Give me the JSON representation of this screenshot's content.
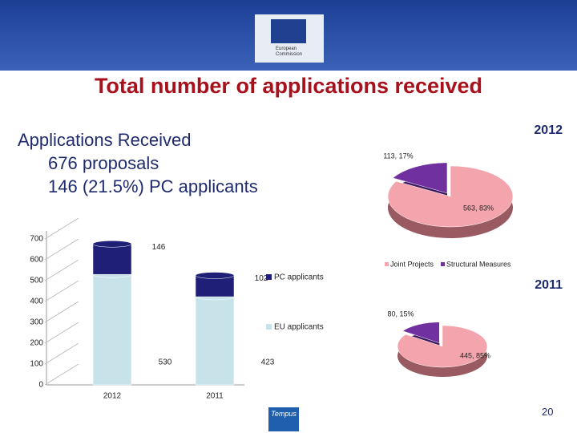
{
  "header": {
    "logo_text": "European Commission"
  },
  "slide": {
    "title": "Total number of applications received",
    "summary": [
      "Applications Received",
      "676 proposals",
      "146 (21.5%) PC applicants"
    ],
    "footer_logo": "Tempus",
    "page_number": "20"
  },
  "chart_data": [
    {
      "type": "bar",
      "stacked": true,
      "categories": [
        "2012",
        "2011"
      ],
      "series": [
        {
          "name": "EU applicants",
          "color": "#c8e2ea",
          "values": [
            530,
            423
          ]
        },
        {
          "name": "PC applicants",
          "color": "#1f1f78",
          "values": [
            146,
            102
          ]
        }
      ],
      "ylim": [
        0,
        700
      ],
      "yticks": [
        0,
        100,
        200,
        300,
        400,
        500,
        600,
        700
      ]
    },
    {
      "type": "pie",
      "title": "2012",
      "categories": [
        "Joint Projects",
        "Structural Measures"
      ],
      "colors": [
        "#f4a4ac",
        "#7030a0"
      ],
      "values": [
        563,
        113
      ],
      "value_labels": [
        "563, 83%",
        "113, 17%"
      ]
    },
    {
      "type": "pie",
      "title": "2011",
      "colors": [
        "#f4a4ac",
        "#7030a0"
      ],
      "values": [
        445,
        80
      ],
      "value_labels": [
        "445, 85%",
        "80, 15%"
      ]
    }
  ]
}
